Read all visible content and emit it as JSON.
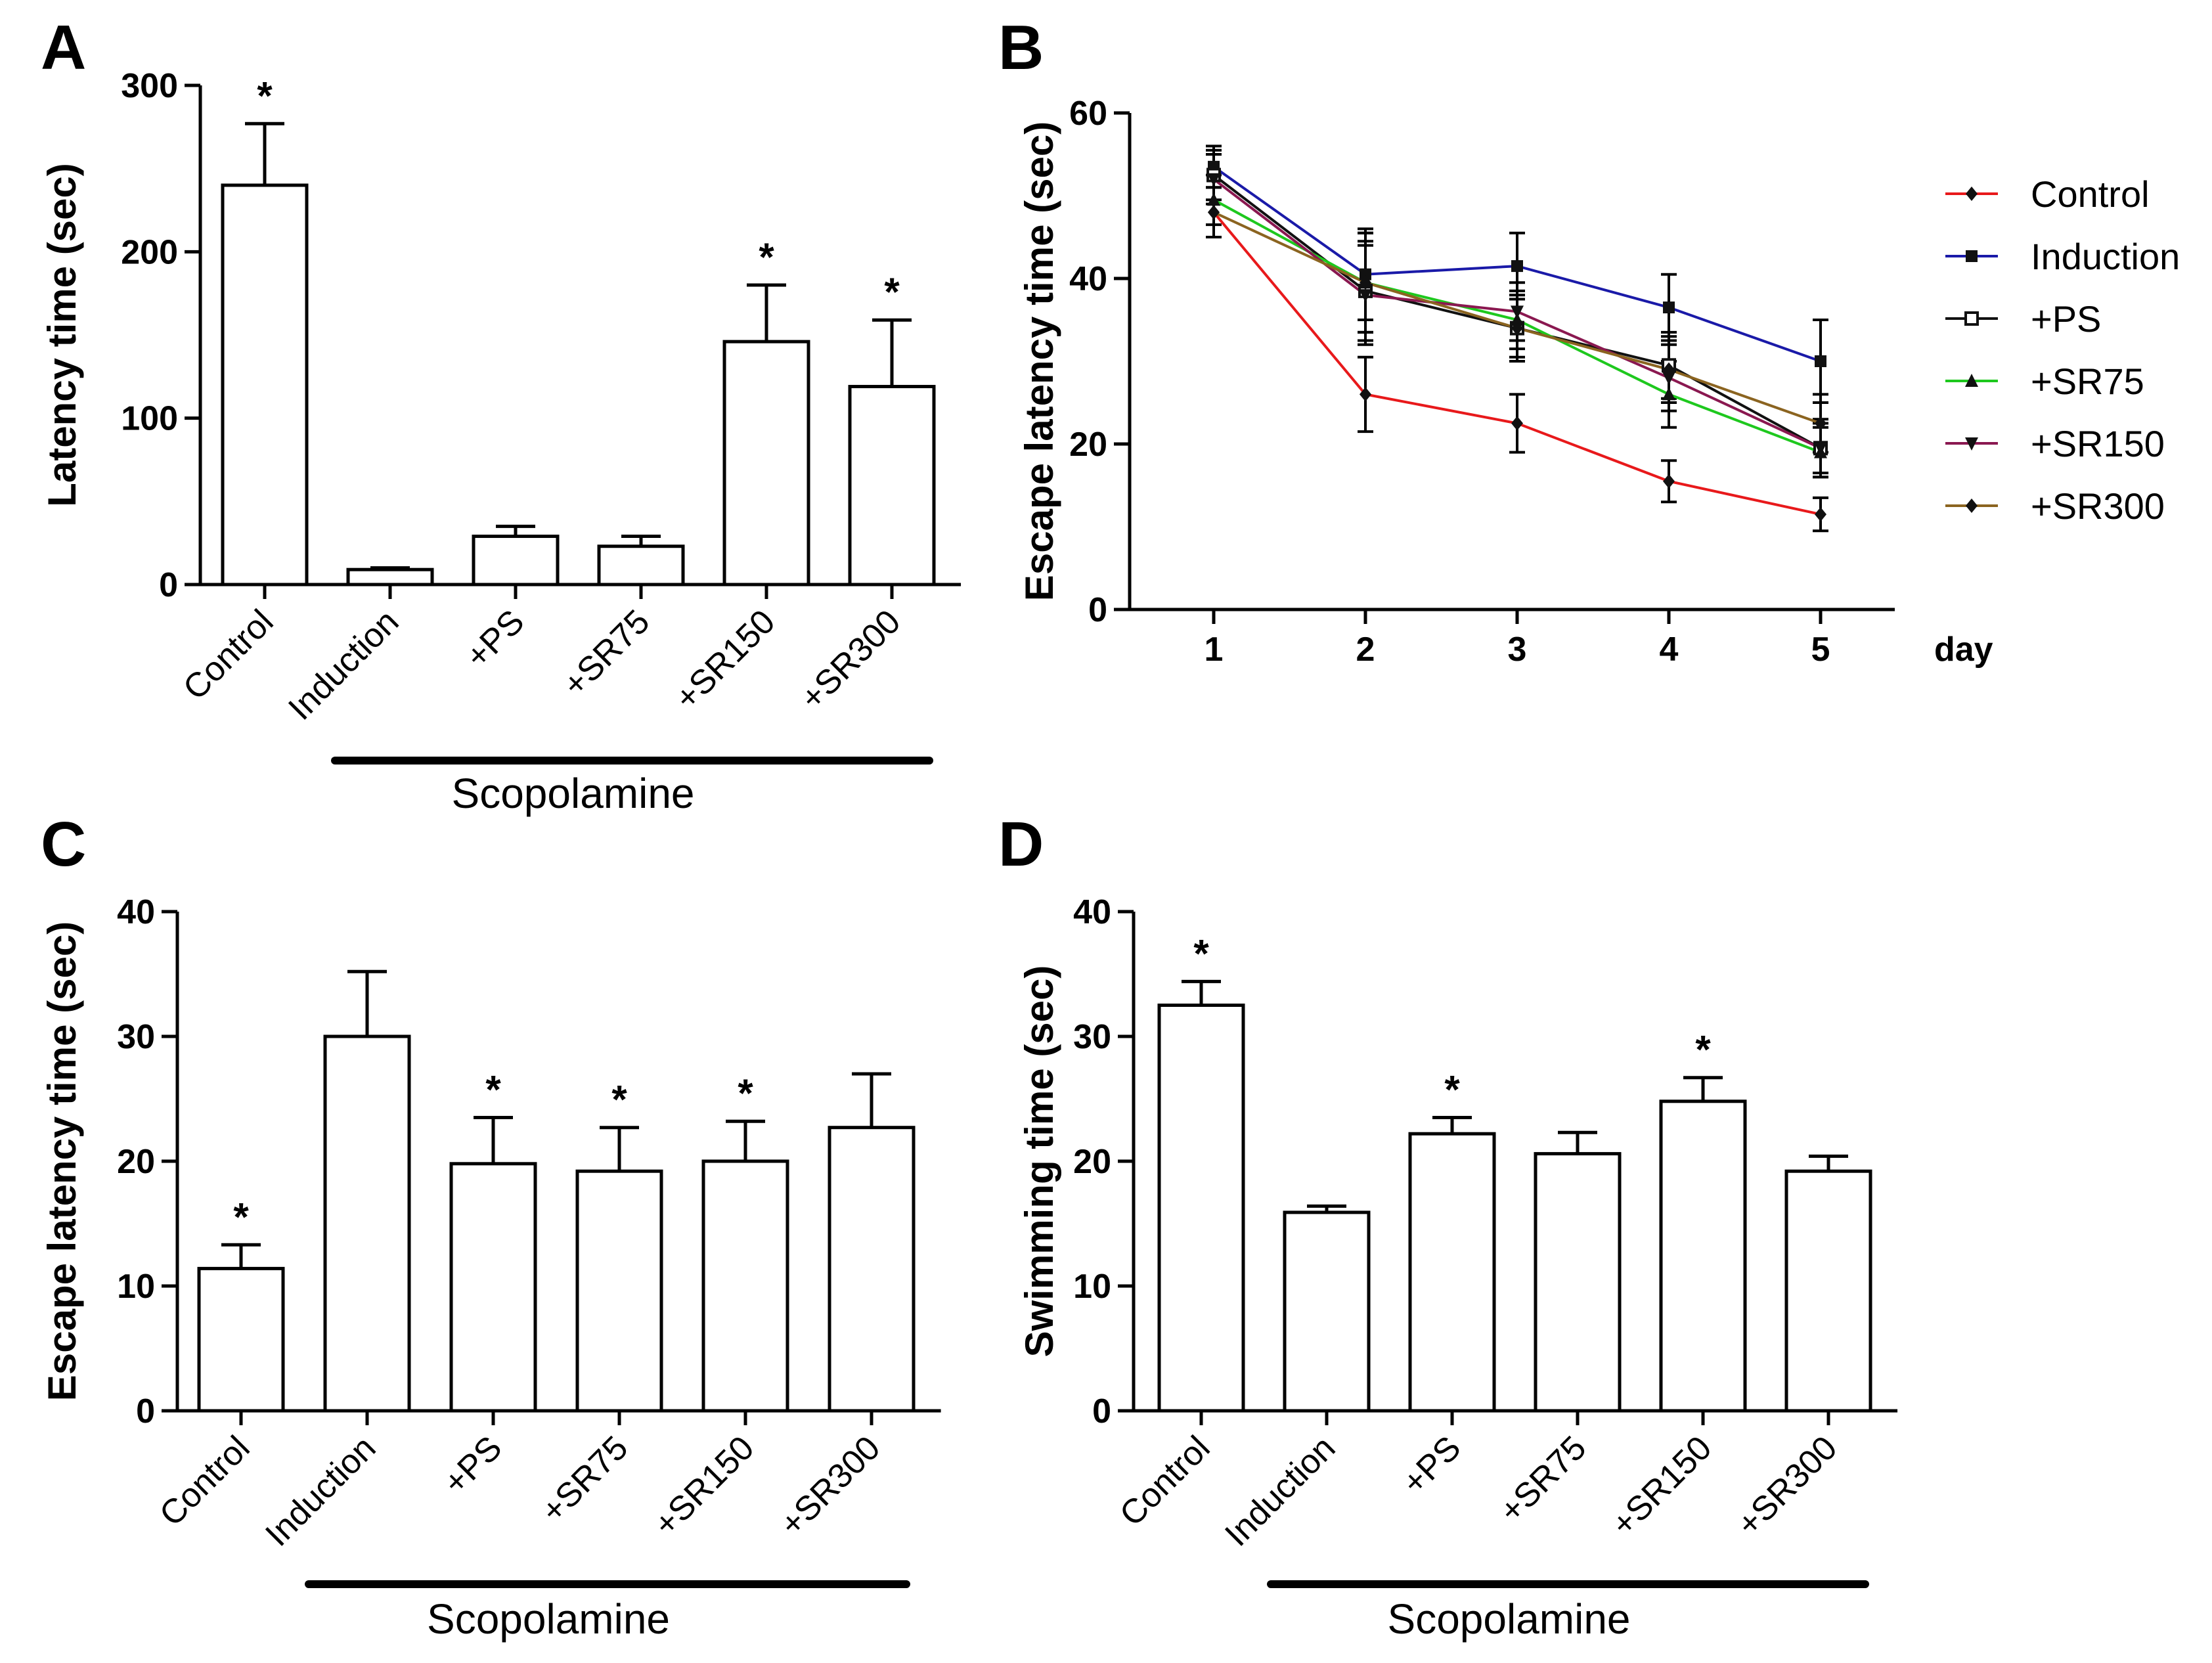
{
  "chart_data": [
    {
      "panel": "A",
      "type": "bar",
      "categories": [
        "Control",
        "Induction",
        "+PS",
        "+SR75",
        "+SR150",
        "+SR300"
      ],
      "values": [
        240,
        9,
        29,
        23,
        146,
        119
      ],
      "errors": [
        37,
        1,
        6,
        6,
        34,
        40
      ],
      "significant": [
        true,
        false,
        false,
        false,
        true,
        true
      ],
      "significance_mark": "*",
      "ylabel": "Latency time (sec)",
      "ylim": [
        0,
        300
      ],
      "yticks": [
        0,
        100,
        200,
        300
      ],
      "group_label": "Scopolamine",
      "group_range": [
        1,
        5
      ]
    },
    {
      "panel": "B",
      "type": "line",
      "x": [
        1,
        2,
        3,
        4,
        5
      ],
      "xlabel": "day",
      "ylabel": "Escape latency time (sec)",
      "ylim": [
        0,
        60
      ],
      "yticks": [
        0,
        20,
        40,
        60
      ],
      "series": [
        {
          "name": "Control",
          "color": "#e8191b",
          "marker": "diamond",
          "values": [
            48,
            26,
            22.5,
            15.5,
            11.5
          ],
          "errors": [
            3,
            4.5,
            3.5,
            2.5,
            2
          ]
        },
        {
          "name": "Induction",
          "color": "#1a1aa8",
          "marker": "square",
          "values": [
            53.5,
            40.5,
            41.5,
            36.5,
            30
          ],
          "errors": [
            2.5,
            5.5,
            4,
            4,
            5
          ]
        },
        {
          "name": "+PS",
          "color": "#111111",
          "marker": "open-square",
          "values": [
            52.5,
            38.5,
            34,
            29.5,
            19.5
          ],
          "errors": [
            3,
            6,
            4,
            4,
            3
          ]
        },
        {
          "name": "+SR75",
          "color": "#1ec81e",
          "marker": "triangle",
          "values": [
            49.5,
            39.5,
            35,
            26,
            19
          ],
          "errors": [
            3,
            6,
            3.5,
            4,
            3
          ]
        },
        {
          "name": "+SR150",
          "color": "#8a1850",
          "marker": "triangle-down",
          "values": [
            52,
            38,
            36,
            28,
            19.5
          ],
          "errors": [
            3,
            6,
            3.5,
            4,
            3.5
          ]
        },
        {
          "name": "+SR300",
          "color": "#8b6420",
          "marker": "diamond",
          "values": [
            48,
            39.5,
            34,
            29,
            22.5
          ],
          "errors": [
            3,
            6,
            3.5,
            4,
            3.5
          ]
        }
      ]
    },
    {
      "panel": "C",
      "type": "bar",
      "categories": [
        "Control",
        "Induction",
        "+PS",
        "+SR75",
        "+SR150",
        "+SR300"
      ],
      "values": [
        11.4,
        30,
        19.8,
        19.2,
        20,
        22.7
      ],
      "errors": [
        1.9,
        5.2,
        3.7,
        3.5,
        3.2,
        4.3
      ],
      "significant": [
        true,
        false,
        true,
        true,
        true,
        false
      ],
      "significance_mark": "*",
      "ylabel": "Escape latency time (sec)",
      "ylim": [
        0,
        40
      ],
      "yticks": [
        0,
        10,
        20,
        30,
        40
      ],
      "group_label": "Scopolamine",
      "group_range": [
        1,
        5
      ]
    },
    {
      "panel": "D",
      "type": "bar",
      "categories": [
        "Control",
        "Induction",
        "+PS",
        "+SR75",
        "+SR150",
        "+SR300"
      ],
      "values": [
        32.5,
        15.9,
        22.2,
        20.6,
        24.8,
        19.2
      ],
      "errors": [
        1.9,
        0.5,
        1.3,
        1.7,
        1.9,
        1.2
      ],
      "significant": [
        true,
        false,
        true,
        false,
        true,
        false
      ],
      "significance_mark": "*",
      "ylabel": "Swimming time (sec)",
      "ylim": [
        0,
        40
      ],
      "yticks": [
        0,
        10,
        20,
        30,
        40
      ],
      "group_label": "Scopolamine",
      "group_range": [
        1,
        5
      ]
    }
  ]
}
